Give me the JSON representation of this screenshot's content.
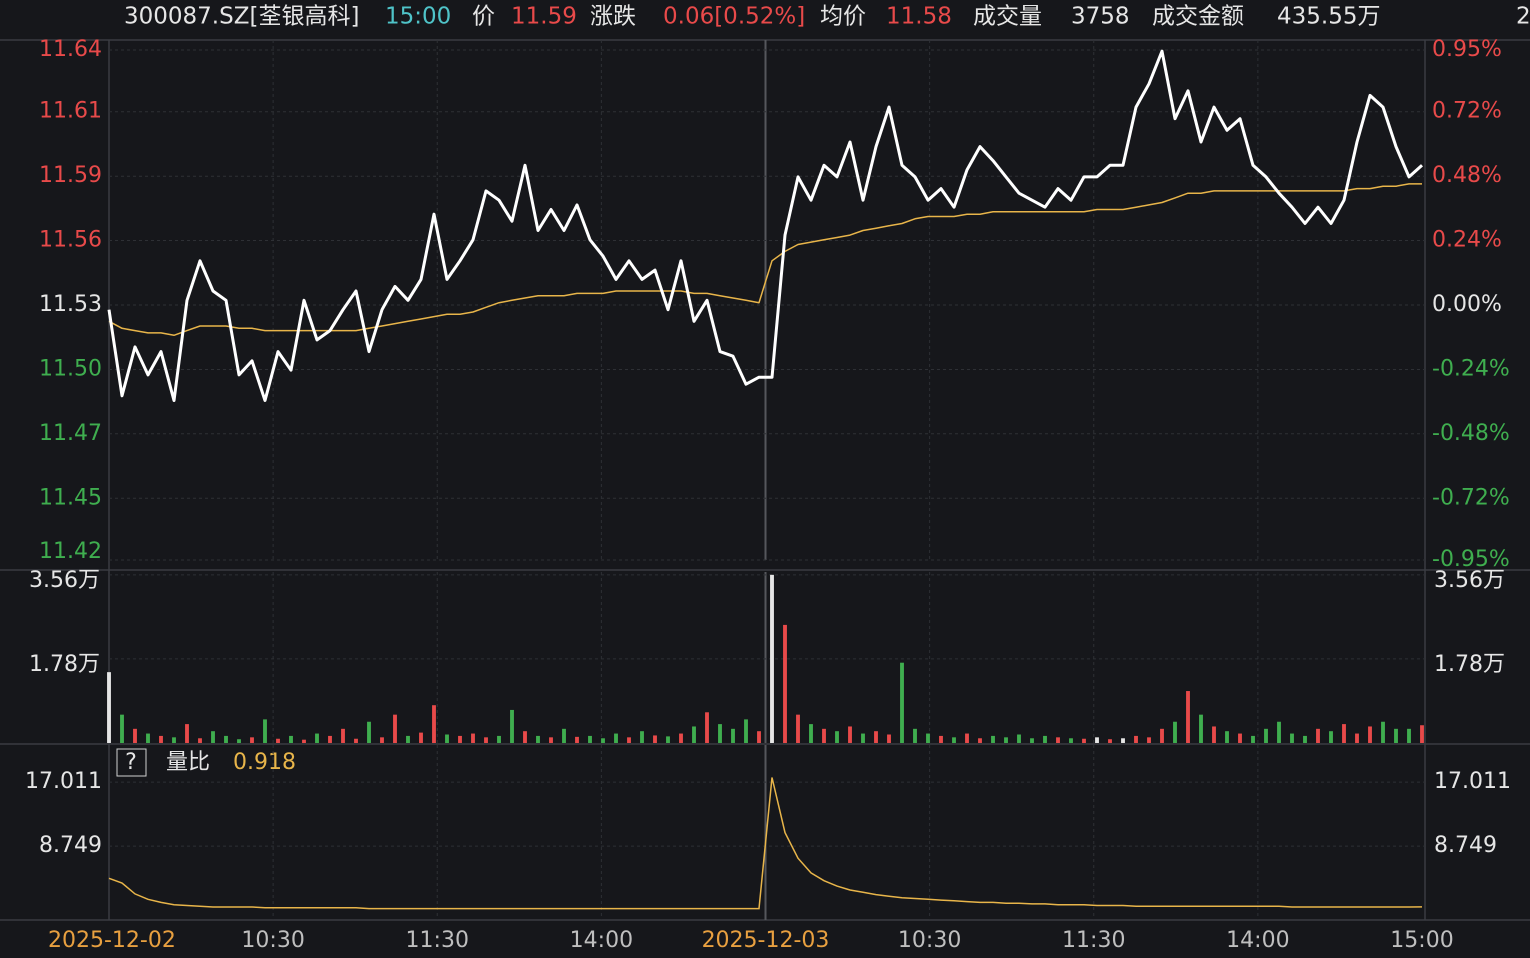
{
  "header": {
    "symbol": "300087.SZ[荃银高科]",
    "time": "15:00",
    "price_label": "价",
    "price": "11.59",
    "change_label": "涨跌",
    "change": "0.06[0.52%]",
    "avg_label": "均价",
    "avg": "11.58",
    "volume_label": "成交量",
    "volume": "3758",
    "amount_label": "成交金额",
    "amount": "435.55万",
    "cut": "2"
  },
  "chart_data": [
    {
      "type": "line",
      "xticks": [
        "2025-12-02",
        "10:30",
        "11:30",
        "14:00",
        "2025-12-03",
        "10:30",
        "11:30",
        "14:00",
        "15:00"
      ],
      "ylim": [
        11.4205,
        11.6395
      ],
      "yticks": [
        {
          "value": 11.6395,
          "label": "11.64"
        },
        {
          "value": 11.613,
          "label": "11.61"
        },
        {
          "value": 11.5853,
          "label": "11.59"
        },
        {
          "value": 11.5577,
          "label": "11.56"
        },
        {
          "value": 11.53,
          "label": "11.53"
        },
        {
          "value": 11.5023,
          "label": "11.50"
        },
        {
          "value": 11.4747,
          "label": "11.47"
        },
        {
          "value": 11.447,
          "label": "11.45"
        },
        {
          "value": 11.4205,
          "label": "11.42"
        }
      ],
      "y2lim": [
        -0.95,
        0.95
      ],
      "y2ticks": [
        {
          "value": 0.95,
          "label": "0.95%"
        },
        {
          "value": 0.72,
          "label": "0.72%"
        },
        {
          "value": 0.48,
          "label": "0.48%"
        },
        {
          "value": 0.24,
          "label": "0.24%"
        },
        {
          "value": 0,
          "label": "0.00%"
        },
        {
          "value": -0.24,
          "label": "-0.24%"
        },
        {
          "value": -0.48,
          "label": "-0.48%"
        },
        {
          "value": -0.72,
          "label": "-0.72%"
        },
        {
          "value": -0.95,
          "label": "-0.95%"
        }
      ],
      "grid": true,
      "up_color": "#e84a4a",
      "down_color": "#3fae4f",
      "flat_color": "#e6e6e6",
      "series": [
        {
          "color": "#ffffff",
          "values": [
            11.528,
            11.491,
            11.512,
            11.5,
            11.51,
            11.489,
            11.532,
            11.549,
            11.536,
            11.532,
            11.5,
            11.506,
            11.489,
            11.51,
            11.502,
            11.532,
            11.515,
            11.519,
            11.528,
            11.536,
            11.51,
            11.528,
            11.538,
            11.532,
            11.541,
            11.569,
            11.541,
            11.549,
            11.558,
            11.579,
            11.575,
            11.566,
            11.59,
            11.562,
            11.571,
            11.562,
            11.573,
            11.558,
            11.551,
            11.541,
            11.549,
            11.541,
            11.545,
            11.528,
            11.549,
            11.523,
            11.532,
            11.51,
            11.508,
            11.496,
            11.499,
            11.499,
            11.56,
            11.585,
            11.575,
            11.59,
            11.585,
            11.6,
            11.575,
            11.598,
            11.615,
            11.59,
            11.585,
            11.575,
            11.58,
            11.572,
            11.588,
            11.598,
            11.592,
            11.585,
            11.578,
            11.575,
            11.572,
            11.58,
            11.575,
            11.585,
            11.585,
            11.59,
            11.59,
            11.615,
            11.625,
            11.639,
            11.61,
            11.622,
            11.6,
            11.615,
            11.605,
            11.61,
            11.59,
            11.585,
            11.578,
            11.572,
            11.565,
            11.572,
            11.565,
            11.575,
            11.6,
            11.62,
            11.615,
            11.598,
            11.585,
            11.59
          ]
        },
        {
          "color": "#e8b54a",
          "values": [
            11.523,
            11.52,
            11.519,
            11.518,
            11.518,
            11.517,
            11.519,
            11.521,
            11.521,
            11.521,
            11.52,
            11.52,
            11.519,
            11.519,
            11.519,
            11.519,
            11.519,
            11.519,
            11.519,
            11.519,
            11.52,
            11.521,
            11.522,
            11.523,
            11.524,
            11.525,
            11.526,
            11.526,
            11.527,
            11.529,
            11.531,
            11.532,
            11.533,
            11.534,
            11.534,
            11.534,
            11.535,
            11.535,
            11.535,
            11.536,
            11.536,
            11.536,
            11.536,
            11.536,
            11.536,
            11.535,
            11.535,
            11.534,
            11.533,
            11.532,
            11.531,
            11.549,
            11.553,
            11.556,
            11.557,
            11.558,
            11.559,
            11.56,
            11.562,
            11.563,
            11.564,
            11.565,
            11.567,
            11.568,
            11.568,
            11.568,
            11.569,
            11.569,
            11.57,
            11.57,
            11.57,
            11.57,
            11.57,
            11.57,
            11.57,
            11.57,
            11.571,
            11.571,
            11.571,
            11.572,
            11.573,
            11.574,
            11.576,
            11.578,
            11.578,
            11.579,
            11.579,
            11.579,
            11.579,
            11.579,
            11.579,
            11.579,
            11.579,
            11.579,
            11.579,
            11.579,
            11.58,
            11.58,
            11.581,
            11.581,
            11.582,
            11.582
          ]
        }
      ]
    },
    {
      "type": "bar",
      "ylim": [
        0,
        36200
      ],
      "yticks": [
        {
          "value": 17800,
          "label": "1.78万"
        },
        {
          "value": 35600,
          "label": "3.56万"
        }
      ],
      "values": [
        15000,
        6000,
        3000,
        2000,
        1500,
        1200,
        4000,
        1000,
        2500,
        1500,
        800,
        1200,
        5000,
        900,
        1500,
        700,
        2000,
        1500,
        3000,
        900,
        4500,
        1200,
        6000,
        1500,
        2200,
        8000,
        1800,
        1500,
        2000,
        1200,
        1500,
        7000,
        2500,
        1500,
        1200,
        3000,
        1300,
        1500,
        1000,
        2000,
        1200,
        2500,
        1600,
        1400,
        2000,
        3500,
        6500,
        4000,
        3000,
        5000,
        2500,
        35600,
        25000,
        6000,
        4000,
        3000,
        2500,
        3500,
        2000,
        2500,
        1800,
        17000,
        3000,
        2000,
        1500,
        1200,
        2000,
        1000,
        1500,
        1200,
        1800,
        1000,
        1500,
        1200,
        1000,
        900,
        1200,
        800,
        1000,
        1500,
        1200,
        3000,
        4500,
        11000,
        6000,
        3500,
        2500,
        2000,
        1500,
        3000,
        4500,
        2000,
        1500,
        3000,
        2500,
        4000,
        2000,
        3500,
        4500,
        3000,
        3000,
        3758
      ]
    },
    {
      "type": "line",
      "help": "?",
      "label": "量比",
      "latest": 0.918,
      "color": "#e8b54a",
      "ylim": [
        -0.77,
        21.79
      ],
      "yticks": [
        17.011,
        8.749
      ],
      "values": [
        4.6,
        4.0,
        2.6,
        1.9,
        1.5,
        1.2,
        1.1,
        1.0,
        0.9,
        0.9,
        0.9,
        0.9,
        0.8,
        0.8,
        0.8,
        0.8,
        0.8,
        0.8,
        0.8,
        0.8,
        0.7,
        0.7,
        0.7,
        0.7,
        0.7,
        0.7,
        0.7,
        0.7,
        0.7,
        0.7,
        0.7,
        0.7,
        0.7,
        0.7,
        0.7,
        0.7,
        0.7,
        0.7,
        0.7,
        0.7,
        0.7,
        0.7,
        0.7,
        0.7,
        0.7,
        0.7,
        0.7,
        0.7,
        0.7,
        0.7,
        0.7,
        17.6,
        10.5,
        7.2,
        5.3,
        4.3,
        3.6,
        3.1,
        2.8,
        2.5,
        2.3,
        2.1,
        2.0,
        1.9,
        1.8,
        1.7,
        1.6,
        1.5,
        1.5,
        1.4,
        1.4,
        1.3,
        1.3,
        1.2,
        1.2,
        1.2,
        1.1,
        1.1,
        1.1,
        1.0,
        1.0,
        1.0,
        1.0,
        1.0,
        1.0,
        1.0,
        1.0,
        1.0,
        1.0,
        1.0,
        1.0,
        0.9,
        0.9,
        0.9,
        0.9,
        0.9,
        0.9,
        0.9,
        0.9,
        0.9,
        0.9,
        0.918
      ]
    }
  ]
}
